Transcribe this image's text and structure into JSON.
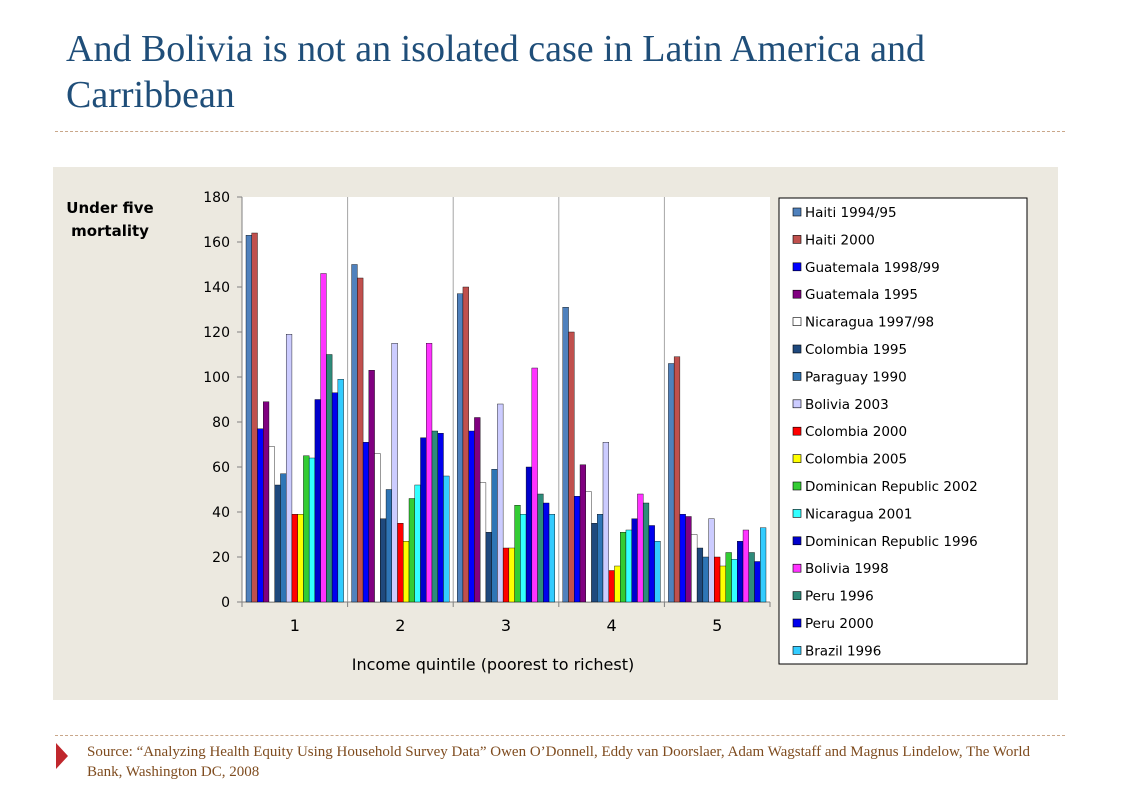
{
  "slide": {
    "title": "And Bolivia is not an isolated case in Latin America and Carribbean",
    "source": "Source: “Analyzing Health Equity Using Household Survey Data” Owen O’Donnell, Eddy van Doorslaer, Adam Wagstaff and Magnus Lindelow, The World Bank, Washington DC, 2008",
    "colors": {
      "title": "#1f4e79",
      "divider": "#c9a78a",
      "panel_bg": "#ece9e0",
      "marker": "#c0272d",
      "source": "#7f4c1f"
    },
    "marker_icon": "triangle-right-icon"
  },
  "chart_data": {
    "type": "bar",
    "ylabel": "Under five mortality",
    "xlabel": "Income quintile (poorest to richest)",
    "categories": [
      "1",
      "2",
      "3",
      "4",
      "5"
    ],
    "ylim": [
      0,
      180
    ],
    "yticks": [
      0,
      20,
      40,
      60,
      80,
      100,
      120,
      140,
      160,
      180
    ],
    "grid": "vertical",
    "legend_position": "right",
    "series": [
      {
        "name": "Haiti 1994/95",
        "color": "#4f81bd",
        "values": [
          163,
          150,
          137,
          131,
          106
        ]
      },
      {
        "name": "Haiti 2000",
        "color": "#c0504d",
        "values": [
          164,
          144,
          140,
          120,
          109
        ]
      },
      {
        "name": "Guatemala 1998/99",
        "color": "#0000ff",
        "values": [
          77,
          71,
          76,
          47,
          39
        ]
      },
      {
        "name": "Guatemala 1995",
        "color": "#800080",
        "values": [
          89,
          103,
          82,
          61,
          38
        ]
      },
      {
        "name": "Nicaragua 1997/98",
        "color": "#ffffff",
        "values": [
          69,
          66,
          53,
          49,
          30
        ]
      },
      {
        "name": "Colombia 1995",
        "color": "#1f497d",
        "values": [
          52,
          37,
          31,
          35,
          24
        ]
      },
      {
        "name": "Paraguay 1990",
        "color": "#2e75b6",
        "values": [
          57,
          50,
          59,
          39,
          20
        ]
      },
      {
        "name": "Bolivia 2003",
        "color": "#ccccff",
        "values": [
          119,
          115,
          88,
          71,
          37
        ]
      },
      {
        "name": "Colombia 2000",
        "color": "#ff0000",
        "values": [
          39,
          35,
          24,
          14,
          20
        ]
      },
      {
        "name": "Colombia 2005",
        "color": "#ffff00",
        "values": [
          39,
          27,
          24,
          16,
          16
        ]
      },
      {
        "name": "Dominican Republic 2002",
        "color": "#33cc33",
        "values": [
          65,
          46,
          43,
          31,
          22
        ]
      },
      {
        "name": "Nicaragua 2001",
        "color": "#33ffff",
        "values": [
          64,
          52,
          39,
          32,
          19
        ]
      },
      {
        "name": "Dominican Republic 1996",
        "color": "#0000cc",
        "values": [
          90,
          73,
          60,
          37,
          27
        ]
      },
      {
        "name": "Bolivia 1998",
        "color": "#ff33ff",
        "values": [
          146,
          115,
          104,
          48,
          32
        ]
      },
      {
        "name": "Peru 1996",
        "color": "#2e8b7a",
        "values": [
          110,
          76,
          48,
          44,
          22
        ]
      },
      {
        "name": "Peru 2000",
        "color": "#0000ee",
        "values": [
          93,
          75,
          44,
          34,
          18
        ]
      },
      {
        "name": "Brazil 1996",
        "color": "#33ccff",
        "values": [
          99,
          56,
          39,
          27,
          33
        ]
      }
    ]
  }
}
